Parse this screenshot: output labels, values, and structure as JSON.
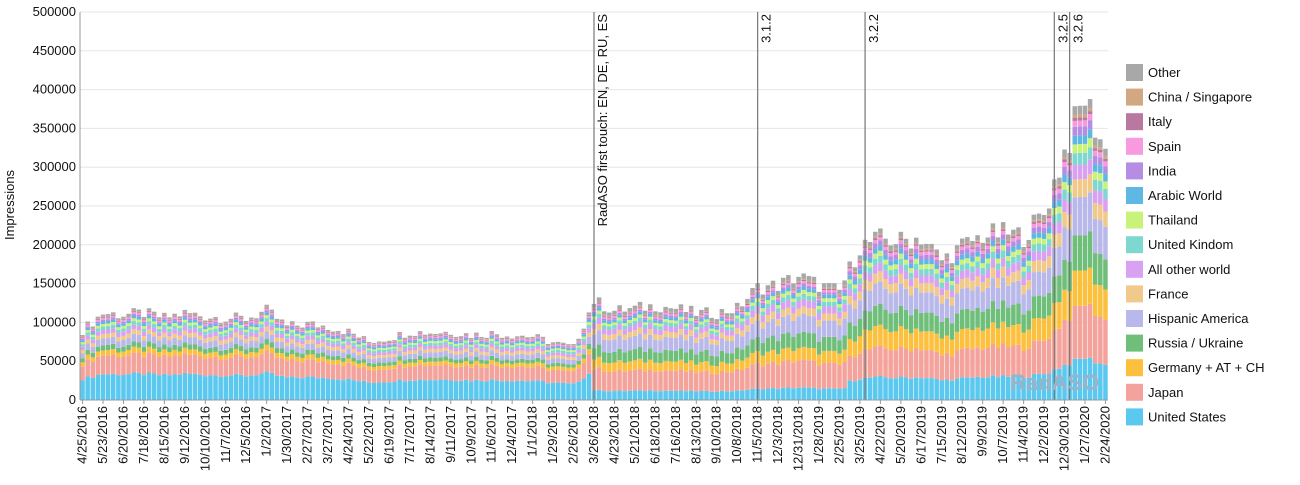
{
  "chart_data": {
    "type": "bar",
    "stacked": true,
    "ylabel": "Impressions",
    "xlabel": "",
    "ylim": [
      0,
      500000
    ],
    "yticks": [
      0,
      50000,
      100000,
      150000,
      200000,
      250000,
      300000,
      350000,
      400000,
      450000,
      500000
    ],
    "grid": true,
    "legend_position": "right",
    "watermark": "RadASO",
    "x_tick_labels": [
      "4/25/2016",
      "5/23/2016",
      "6/20/2016",
      "7/18/2016",
      "8/15/2016",
      "9/12/2016",
      "10/10/2016",
      "11/7/2016",
      "12/5/2016",
      "1/2/2017",
      "1/30/2017",
      "2/27/2017",
      "3/27/2017",
      "4/24/2017",
      "5/22/2017",
      "6/19/2017",
      "7/17/2017",
      "8/14/2017",
      "9/11/2017",
      "10/9/2017",
      "11/6/2017",
      "12/4/2017",
      "1/1/2018",
      "1/29/2018",
      "2/26/2018",
      "3/26/2018",
      "4/23/2018",
      "5/21/2018",
      "6/18/2018",
      "7/16/2018",
      "8/13/2018",
      "9/10/2018",
      "10/8/2018",
      "11/5/2018",
      "12/3/2018",
      "12/31/2018",
      "1/28/2019",
      "2/25/2019",
      "3/25/2019",
      "4/22/2019",
      "5/20/2019",
      "6/17/2019",
      "7/15/2019",
      "8/12/2019",
      "9/9/2019",
      "10/7/2019",
      "11/4/2019",
      "12/2/2019",
      "12/30/2019",
      "1/27/2020",
      "2/24/2020"
    ],
    "weeks_per_tick": 4,
    "totals_at_ticks": [
      90000,
      112000,
      110000,
      112000,
      106000,
      112000,
      108000,
      106000,
      105000,
      115000,
      95000,
      98000,
      95000,
      88000,
      75000,
      80000,
      88000,
      87000,
      88000,
      84000,
      86000,
      84000,
      82000,
      74000,
      68000,
      128000,
      115000,
      118000,
      122000,
      118000,
      112000,
      112000,
      118000,
      145000,
      148000,
      160000,
      148000,
      140000,
      198000,
      208000,
      205000,
      210000,
      180000,
      198000,
      212000,
      215000,
      212000,
      240000,
      320000,
      390000,
      320000
    ],
    "series": [
      {
        "name": "United States",
        "color": "#5bc8f0"
      },
      {
        "name": "Japan",
        "color": "#f4a39c"
      },
      {
        "name": "Germany + AT + CH",
        "color": "#fbc03d"
      },
      {
        "name": "Russia / Ukraine",
        "color": "#6fbf7a"
      },
      {
        "name": "Hispanic America",
        "color": "#b9b8ea"
      },
      {
        "name": "France",
        "color": "#f1c98a"
      },
      {
        "name": "All other world",
        "color": "#d8a1f2"
      },
      {
        "name": "United Kindom",
        "color": "#7fd8cf"
      },
      {
        "name": "Thailand",
        "color": "#c9f27a"
      },
      {
        "name": "Arabic World",
        "color": "#5fb7e3"
      },
      {
        "name": "India",
        "color": "#b58ee3"
      },
      {
        "name": "Spain",
        "color": "#f79ae0"
      },
      {
        "name": "Italy",
        "color": "#b9789f"
      },
      {
        "name": "China / Singapore",
        "color": "#d2a882"
      },
      {
        "name": "Other",
        "color": "#a8a8a8"
      }
    ],
    "legend_order": [
      "Other",
      "China / Singapore",
      "Italy",
      "Spain",
      "India",
      "Arabic World",
      "Thailand",
      "United Kindom",
      "All other world",
      "France",
      "Hispanic America",
      "Russia / Ukraine",
      "Germany + AT + CH",
      "Japan",
      "United States"
    ],
    "annotations": [
      {
        "label": "RadASO first touch: EN, DE, RU, ES",
        "x_week": 100
      },
      {
        "label": "3.1.2",
        "x_week": 132
      },
      {
        "label": "3.2.2",
        "x_week": 153
      },
      {
        "label": "3.2.5",
        "x_week": 190
      },
      {
        "label": "3.2.6",
        "x_week": 193
      }
    ]
  }
}
